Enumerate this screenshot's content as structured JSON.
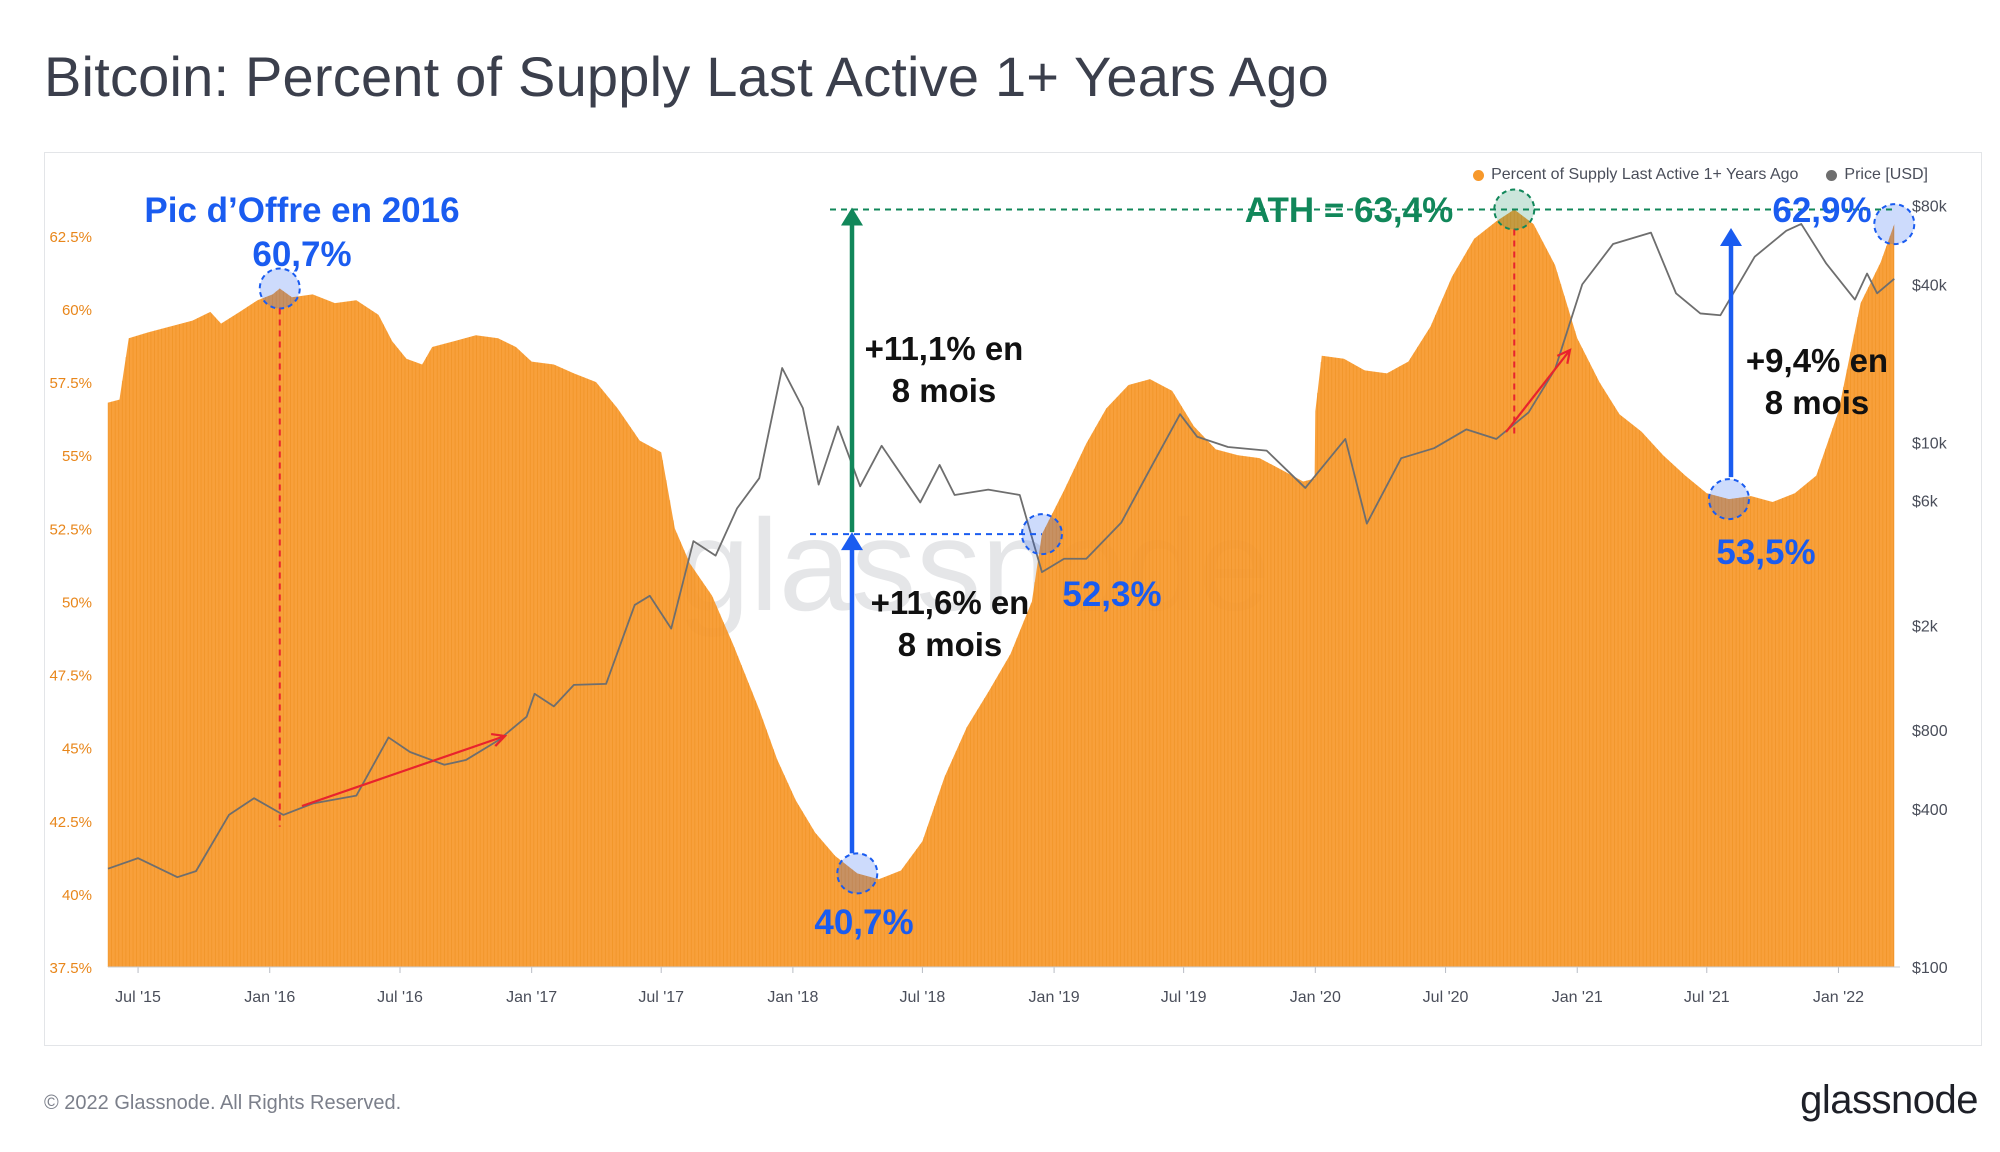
{
  "page": {
    "title": "Bitcoin: Percent of Supply Last Active 1+ Years Ago",
    "copyright": "© 2022 Glassnode. All Rights Reserved.",
    "logo": "glassnode",
    "watermark": "glassnode"
  },
  "colors": {
    "supply": "#f7982a",
    "price": "#6e6e6e",
    "blue_annot": "#1a5cf0",
    "green_annot": "#11875a",
    "red_arrow": "#e8232d"
  },
  "chart_data": {
    "type": "area",
    "title": "Bitcoin: Percent of Supply Last Active 1+ Years Ago",
    "legend_position": "top-right",
    "grid": false,
    "x_ticks": [
      "Jul '15",
      "Jan '16",
      "Jul '16",
      "Jan '17",
      "Jul '17",
      "Jan '18",
      "Jul '18",
      "Jan '19",
      "Jul '19",
      "Jan '20",
      "Jul '20",
      "Jan '21",
      "Jul '21",
      "Jan '22"
    ],
    "y_left_ticks": [
      "37.5%",
      "40%",
      "42.5%",
      "45%",
      "47.5%",
      "50%",
      "52.5%",
      "55%",
      "57.5%",
      "60%",
      "62.5%"
    ],
    "y_left_range": [
      37.5,
      64
    ],
    "y_right_ticks": [
      "$100",
      "$400",
      "$800",
      "$2k",
      "$6k",
      "$10k",
      "$40k",
      "$80k"
    ],
    "y_right_range": [
      100,
      90000
    ],
    "y_right_scale": "log",
    "series": [
      {
        "name": "Percent of Supply Last Active 1+ Years Ago",
        "axis": "left",
        "style": "area",
        "points": [
          [
            "2015-05-20",
            56.8
          ],
          [
            "2015-06-05",
            56.9
          ],
          [
            "2015-06-18",
            59.0
          ],
          [
            "2015-07-15",
            59.2
          ],
          [
            "2015-08-15",
            59.4
          ],
          [
            "2015-09-15",
            59.6
          ],
          [
            "2015-10-10",
            59.9
          ],
          [
            "2015-10-25",
            59.5
          ],
          [
            "2015-11-20",
            59.9
          ],
          [
            "2015-12-15",
            60.3
          ],
          [
            "2016-01-05",
            60.5
          ],
          [
            "2016-01-15",
            60.7
          ],
          [
            "2016-02-01",
            60.4
          ],
          [
            "2016-03-01",
            60.5
          ],
          [
            "2016-04-01",
            60.2
          ],
          [
            "2016-05-01",
            60.3
          ],
          [
            "2016-06-01",
            59.8
          ],
          [
            "2016-06-20",
            58.9
          ],
          [
            "2016-07-10",
            58.3
          ],
          [
            "2016-08-01",
            58.1
          ],
          [
            "2016-08-15",
            58.7
          ],
          [
            "2016-09-15",
            58.9
          ],
          [
            "2016-10-15",
            59.1
          ],
          [
            "2016-11-15",
            59.0
          ],
          [
            "2016-12-10",
            58.7
          ],
          [
            "2017-01-01",
            58.2
          ],
          [
            "2017-02-01",
            58.1
          ],
          [
            "2017-03-01",
            57.8
          ],
          [
            "2017-04-01",
            57.5
          ],
          [
            "2017-05-01",
            56.6
          ],
          [
            "2017-06-01",
            55.5
          ],
          [
            "2017-07-01",
            55.1
          ],
          [
            "2017-07-20",
            52.5
          ],
          [
            "2017-08-10",
            51.3
          ],
          [
            "2017-09-10",
            50.2
          ],
          [
            "2017-10-10",
            48.5
          ],
          [
            "2017-11-15",
            46.3
          ],
          [
            "2017-12-10",
            44.6
          ],
          [
            "2018-01-05",
            43.2
          ],
          [
            "2018-02-01",
            42.1
          ],
          [
            "2018-03-01",
            41.3
          ],
          [
            "2018-04-01",
            40.7
          ],
          [
            "2018-05-01",
            40.5
          ],
          [
            "2018-06-01",
            40.8
          ],
          [
            "2018-07-01",
            41.8
          ],
          [
            "2018-08-01",
            44.0
          ],
          [
            "2018-09-01",
            45.7
          ],
          [
            "2018-10-01",
            46.9
          ],
          [
            "2018-11-01",
            48.2
          ],
          [
            "2018-12-01",
            50.0
          ],
          [
            "2018-12-15",
            52.3
          ],
          [
            "2019-01-15",
            53.8
          ],
          [
            "2019-02-15",
            55.4
          ],
          [
            "2019-03-15",
            56.6
          ],
          [
            "2019-04-15",
            57.4
          ],
          [
            "2019-05-15",
            57.6
          ],
          [
            "2019-06-15",
            57.2
          ],
          [
            "2019-07-15",
            56.0
          ],
          [
            "2019-08-15",
            55.2
          ],
          [
            "2019-09-15",
            55.0
          ],
          [
            "2019-10-15",
            54.9
          ],
          [
            "2019-11-15",
            54.5
          ],
          [
            "2019-12-15",
            54.1
          ],
          [
            "2019-12-31",
            54.2
          ],
          [
            "2020-01-01",
            56.5
          ],
          [
            "2020-01-10",
            58.4
          ],
          [
            "2020-02-10",
            58.3
          ],
          [
            "2020-03-10",
            57.9
          ],
          [
            "2020-04-10",
            57.8
          ],
          [
            "2020-05-10",
            58.2
          ],
          [
            "2020-06-10",
            59.4
          ],
          [
            "2020-07-10",
            61.1
          ],
          [
            "2020-08-10",
            62.4
          ],
          [
            "2020-09-10",
            63.0
          ],
          [
            "2020-10-05",
            63.4
          ],
          [
            "2020-11-01",
            62.9
          ],
          [
            "2020-12-01",
            61.5
          ],
          [
            "2021-01-01",
            59.0
          ],
          [
            "2021-02-01",
            57.5
          ],
          [
            "2021-03-01",
            56.4
          ],
          [
            "2021-04-01",
            55.8
          ],
          [
            "2021-05-01",
            55.0
          ],
          [
            "2021-06-01",
            54.3
          ],
          [
            "2021-07-01",
            53.7
          ],
          [
            "2021-08-01",
            53.5
          ],
          [
            "2021-09-01",
            53.6
          ],
          [
            "2021-10-01",
            53.4
          ],
          [
            "2021-11-01",
            53.7
          ],
          [
            "2021-12-01",
            54.3
          ],
          [
            "2022-01-01",
            56.5
          ],
          [
            "2022-02-01",
            60.2
          ],
          [
            "2022-03-01",
            61.6
          ],
          [
            "2022-03-20",
            62.9
          ]
        ]
      },
      {
        "name": "Price [USD]",
        "axis": "right",
        "style": "line",
        "points": [
          [
            "2015-05-20",
            237
          ],
          [
            "2015-07-01",
            260
          ],
          [
            "2015-08-25",
            220
          ],
          [
            "2015-09-20",
            232
          ],
          [
            "2015-11-05",
            380
          ],
          [
            "2015-12-10",
            440
          ],
          [
            "2016-01-20",
            380
          ],
          [
            "2016-03-01",
            420
          ],
          [
            "2016-05-01",
            450
          ],
          [
            "2016-06-15",
            750
          ],
          [
            "2016-07-15",
            660
          ],
          [
            "2016-09-01",
            590
          ],
          [
            "2016-10-01",
            615
          ],
          [
            "2016-11-15",
            730
          ],
          [
            "2016-12-25",
            900
          ],
          [
            "2017-01-05",
            1100
          ],
          [
            "2017-02-01",
            985
          ],
          [
            "2017-03-01",
            1190
          ],
          [
            "2017-04-15",
            1200
          ],
          [
            "2017-05-25",
            2400
          ],
          [
            "2017-06-15",
            2600
          ],
          [
            "2017-07-15",
            1950
          ],
          [
            "2017-08-15",
            4200
          ],
          [
            "2017-09-15",
            3700
          ],
          [
            "2017-10-15",
            5600
          ],
          [
            "2017-11-15",
            7300
          ],
          [
            "2017-12-17",
            19200
          ],
          [
            "2018-01-15",
            13500
          ],
          [
            "2018-02-06",
            6900
          ],
          [
            "2018-03-05",
            11500
          ],
          [
            "2018-04-05",
            6800
          ],
          [
            "2018-05-05",
            9700
          ],
          [
            "2018-06-28",
            5900
          ],
          [
            "2018-07-25",
            8200
          ],
          [
            "2018-08-15",
            6300
          ],
          [
            "2018-10-01",
            6600
          ],
          [
            "2018-11-14",
            6300
          ],
          [
            "2018-12-15",
            3200
          ],
          [
            "2019-01-15",
            3600
          ],
          [
            "2019-02-15",
            3600
          ],
          [
            "2019-04-05",
            4950
          ],
          [
            "2019-05-15",
            7900
          ],
          [
            "2019-06-26",
            12800
          ],
          [
            "2019-07-20",
            10500
          ],
          [
            "2019-09-01",
            9600
          ],
          [
            "2019-10-25",
            9300
          ],
          [
            "2019-12-18",
            6700
          ],
          [
            "2020-02-12",
            10300
          ],
          [
            "2020-03-13",
            4900
          ],
          [
            "2020-04-30",
            8700
          ],
          [
            "2020-06-15",
            9500
          ],
          [
            "2020-07-30",
            11200
          ],
          [
            "2020-09-10",
            10300
          ],
          [
            "2020-10-25",
            13000
          ],
          [
            "2020-12-01",
            19000
          ],
          [
            "2021-01-08",
            40000
          ],
          [
            "2021-02-20",
            57000
          ],
          [
            "2021-04-14",
            63000
          ],
          [
            "2021-05-19",
            37000
          ],
          [
            "2021-06-22",
            31000
          ],
          [
            "2021-07-20",
            30500
          ],
          [
            "2021-09-06",
            51000
          ],
          [
            "2021-10-20",
            64000
          ],
          [
            "2021-11-10",
            68000
          ],
          [
            "2021-12-15",
            48000
          ],
          [
            "2022-01-24",
            35000
          ],
          [
            "2022-02-10",
            44000
          ],
          [
            "2022-02-24",
            37000
          ],
          [
            "2022-03-20",
            42000
          ]
        ]
      }
    ],
    "annotations": [
      {
        "type": "text",
        "text": "Pic d’Offre en 2016",
        "color": "blue"
      },
      {
        "type": "text",
        "text": "60,7%",
        "color": "blue",
        "date": "2016-01-15",
        "value": 60.7
      },
      {
        "type": "text",
        "text": "ATH = 63,4%",
        "color": "green",
        "date": "2020-10-05",
        "value": 63.4
      },
      {
        "type": "text",
        "text": "62,9%",
        "color": "blue",
        "date": "2022-03-20",
        "value": 62.9
      },
      {
        "type": "text",
        "text": "+11,1% en",
        "color": "black"
      },
      {
        "type": "text",
        "text": "8 mois",
        "color": "black"
      },
      {
        "type": "text",
        "text": "+11,6% en",
        "color": "black"
      },
      {
        "type": "text",
        "text": "8 mois",
        "color": "black"
      },
      {
        "type": "text",
        "text": "52,3%",
        "color": "blue",
        "date": "2018-12-15",
        "value": 52.3
      },
      {
        "type": "text",
        "text": "+9,4% en",
        "color": "black"
      },
      {
        "type": "text",
        "text": "8 mois",
        "color": "black"
      },
      {
        "type": "text",
        "text": "53,5%",
        "color": "blue",
        "date": "2021-08-01",
        "value": 53.5
      },
      {
        "type": "text",
        "text": "40,7%",
        "color": "blue",
        "date": "2018-04-01",
        "value": 40.7
      }
    ]
  }
}
